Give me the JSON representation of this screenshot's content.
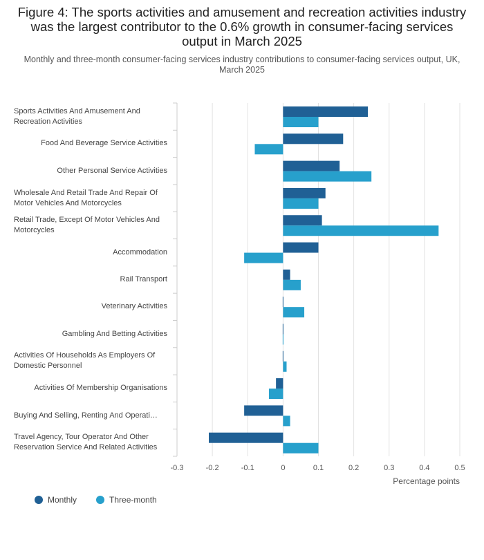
{
  "title": "Figure 4: The sports activities and amusement and recreation activities industry was the largest contributor to the 0.6% growth in consumer-facing services output in March 2025",
  "subtitle": "Monthly and three-month consumer-facing services industry contributions to consumer-facing services output, UK, March 2025",
  "colors": {
    "monthly": "#206095",
    "three_month": "#27a0cc"
  },
  "chart_data": {
    "type": "bar",
    "orientation": "horizontal",
    "categories": [
      "Sports Activities And Amusement And Recreation Activities",
      "Food And Beverage Service Activities",
      "Other Personal Service Activities",
      "Wholesale And Retail Trade And Repair Of Motor Vehicles And Motorcycles",
      "Retail Trade, Except Of Motor Vehicles And Motorcycles",
      "Accommodation",
      "Rail Transport",
      "Veterinary Activities",
      "Gambling And Betting Activities",
      "Activities Of Households As Employers Of Domestic Personnel",
      "Activities Of Membership Organisations",
      "Buying And Selling, Renting And Operati…",
      "Travel Agency, Tour Operator And Other Reservation Service And Related Activities"
    ],
    "series": [
      {
        "name": "Monthly",
        "values": [
          0.24,
          0.17,
          0.16,
          0.12,
          0.11,
          0.1,
          0.02,
          0.0,
          0.0,
          0.0,
          -0.02,
          -0.11,
          -0.21
        ]
      },
      {
        "name": "Three-month",
        "values": [
          0.1,
          -0.08,
          0.25,
          0.1,
          0.44,
          -0.11,
          0.05,
          0.06,
          0.0,
          0.01,
          -0.04,
          0.02,
          0.1
        ]
      }
    ],
    "xlim": [
      -0.3,
      0.5
    ],
    "xticks": [
      -0.3,
      -0.2,
      -0.1,
      0,
      0.1,
      0.2,
      0.3,
      0.4,
      0.5
    ],
    "xtick_labels": [
      "-0.3",
      "-0.2",
      "-0.1",
      "0",
      "0.1",
      "0.2",
      "0.3",
      "0.4",
      "0.5"
    ],
    "xlabel": "Percentage points",
    "ylabel": "",
    "legend": [
      "Monthly",
      "Three-month"
    ],
    "legend_position": "bottom-left",
    "grid": true
  }
}
